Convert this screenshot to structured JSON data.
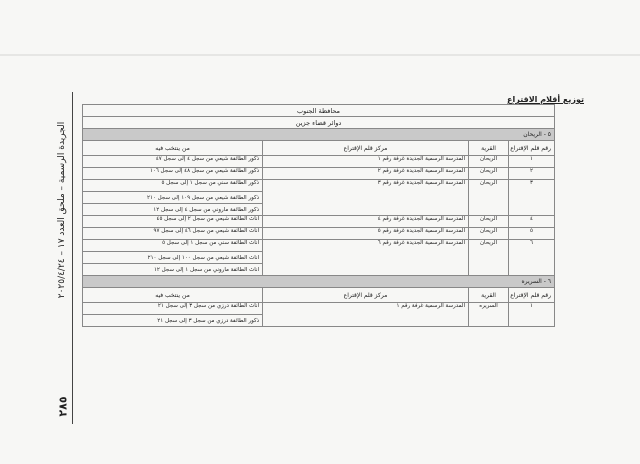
{
  "side_header": "الجريدة الرسمية – ملحق العدد ١٧ – ٢٠٢٥/٤/٢٤",
  "page_number": "٢٨٥",
  "doc_title": "توزيع أقلام الاقتراع",
  "governorate": "محافظة الجنوب",
  "district": "دوائر قضاء جزين",
  "columns": {
    "number": "رقم قلم الإقتراع",
    "village": "القرية",
    "center": "مركز قلم الإقتراع",
    "voters": "من ينتخب فيه"
  },
  "sections": [
    {
      "title": "٥ - الريحان",
      "rows": [
        {
          "number": "١",
          "village": "الريحان",
          "center": "المدرسة الرسمية الجديدة غرفة رقم ١",
          "voters": [
            "ذكور الطائفة شيعي من سجل ٤ إلى سجل ٤٧"
          ]
        },
        {
          "number": "٢",
          "village": "الريحان",
          "center": "المدرسة الرسمية الجديدة غرفة رقم ٢",
          "voters": [
            "ذكور الطائفة شيعي من سجل ٤٨ إلى سجل ١٠٦"
          ]
        },
        {
          "number": "٣",
          "village": "الريحان",
          "center": "المدرسة الرسمية الجديدة غرفة رقم ٣",
          "voters": [
            "ذكور الطائفة سني من سجل ١ إلى سجل ٥",
            "ذكور الطائفة شيعي من سجل ١٠٩ إلى سجل ٢١٠",
            "ذكور الطائفة ماروني من سجل ٤ إلى سجل ١٢"
          ]
        },
        {
          "number": "٤",
          "village": "الريحان",
          "center": "المدرسة الرسمية الجديدة غرفة رقم ٤",
          "voters": [
            "اناث الطائفة شيعي من سجل ٢ إلى سجل ٤٥"
          ]
        },
        {
          "number": "٥",
          "village": "الريحان",
          "center": "المدرسة الرسمية الجديدة غرفة رقم ٥",
          "voters": [
            "اناث الطائفة شيعي من سجل ٤٦ إلى سجل ٩٧"
          ]
        },
        {
          "number": "٦",
          "village": "الريحان",
          "center": "المدرسة الرسمية الجديدة غرفة رقم ٦",
          "voters": [
            "اناث الطائفة سني من سجل ١ إلى سجل ٥",
            "اناث الطائفة شيعي من سجل ١٠٠ إلى سجل ٢١٠",
            "اناث الطائفة ماروني من سجل ١ إلى سجل ١٢"
          ]
        }
      ]
    },
    {
      "title": "٦ - السريره",
      "rows": [
        {
          "number": "١",
          "village": "السريره",
          "center": "المدرسة الرسمية غرفة رقم ١",
          "voters": [
            "اناث الطائفة درزي من سجل ٣ إلى سجل ٢١",
            "ذكور الطائفة درزي من سجل ٣ إلى سجل ٢١"
          ]
        }
      ]
    }
  ]
}
